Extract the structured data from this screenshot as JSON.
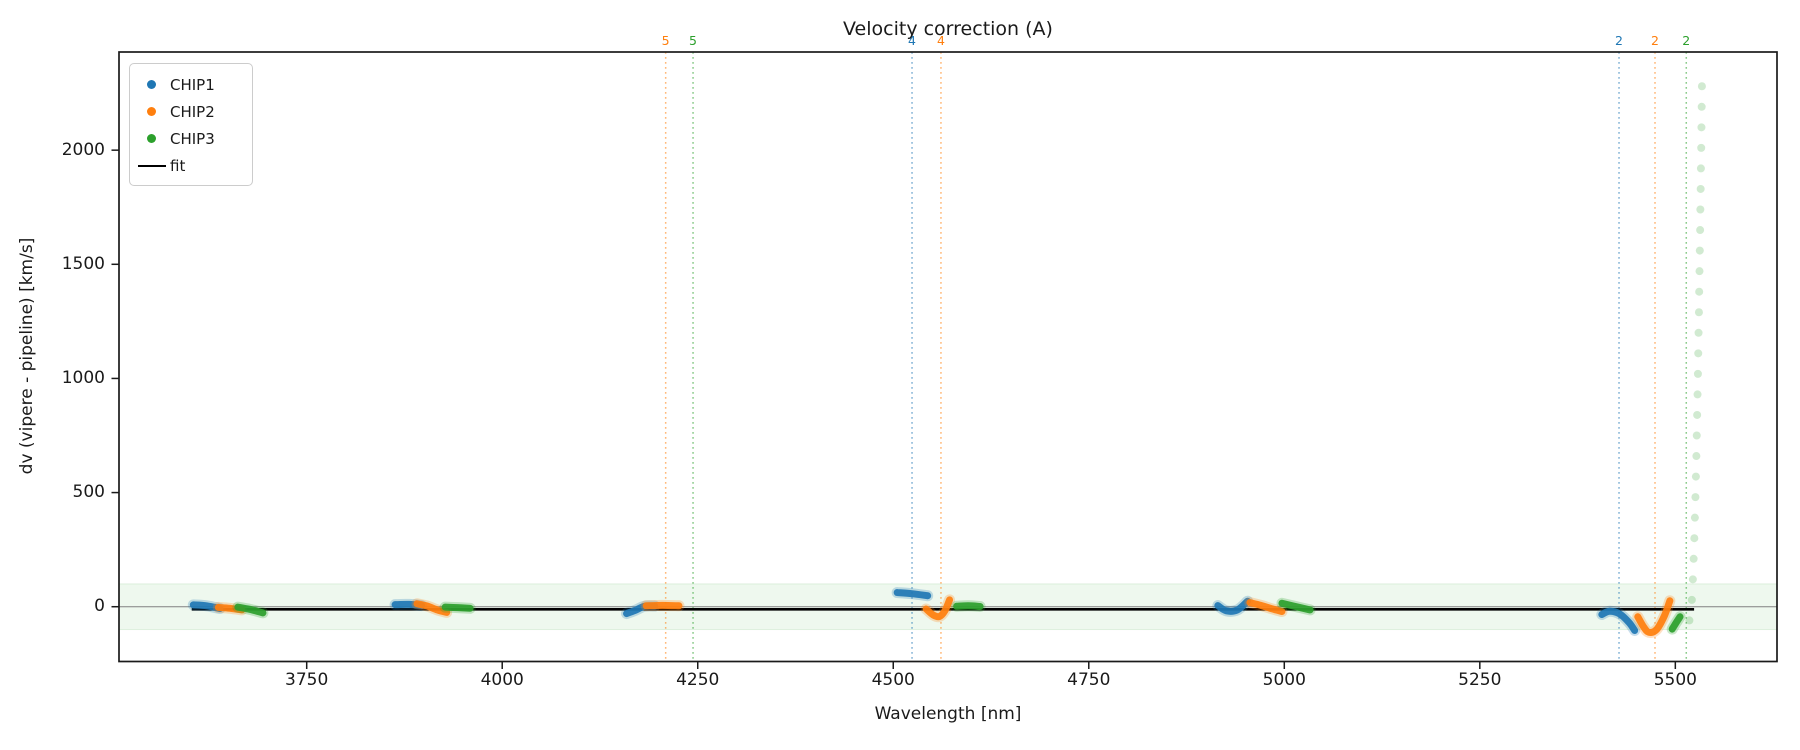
{
  "chart_data": {
    "type": "scatter",
    "title": "Velocity correction (A)",
    "xlabel": "Wavelength [nm]",
    "ylabel": "dv (vipere - pipeline) [km/s]",
    "xlim": [
      3510,
      5630
    ],
    "ylim": [
      -240,
      2430
    ],
    "xticks": [
      3750,
      4000,
      4250,
      4500,
      4750,
      5000,
      5250,
      5500
    ],
    "yticks": [
      0,
      500,
      1000,
      1500,
      2000
    ],
    "grid": false,
    "legend_position": "upper left",
    "background_band": {
      "ymin": -100,
      "ymax": 100,
      "color": "#2ca02c",
      "alpha": 0.08
    },
    "zero_line": {
      "y": 0,
      "color": "#808080",
      "width": 1
    },
    "fit_line": {
      "label": "fit",
      "color": "#000000",
      "x_start": 3603,
      "x_end": 5524,
      "y": -7
    },
    "order_vlines": [
      {
        "x": 4209,
        "label": "5",
        "color": "#ff7f0e"
      },
      {
        "x": 4244,
        "label": "5",
        "color": "#2ca02c"
      },
      {
        "x": 4524,
        "label": "4",
        "color": "#1f77b4"
      },
      {
        "x": 4561,
        "label": "4",
        "color": "#ff7f0e"
      },
      {
        "x": 5428,
        "label": "2",
        "color": "#1f77b4"
      },
      {
        "x": 5474,
        "label": "2",
        "color": "#ff7f0e"
      },
      {
        "x": 5514,
        "label": "2",
        "color": "#2ca02c"
      }
    ],
    "series": [
      {
        "name": "CHIP1",
        "color": "#1f77b4",
        "segments": [
          [
            [
              3605,
              8
            ],
            [
              3622,
              4
            ],
            [
              3639,
              -8
            ]
          ],
          [
            [
              3863,
              9
            ],
            [
              3881,
              10
            ],
            [
              3897,
              5
            ]
          ],
          [
            [
              4159,
              -30
            ],
            [
              4170,
              -16
            ],
            [
              4182,
              2
            ],
            [
              4195,
              3
            ]
          ],
          [
            [
              4505,
              62
            ],
            [
              4524,
              57
            ],
            [
              4544,
              48
            ]
          ],
          [
            [
              4915,
              5
            ],
            [
              4926,
              -18
            ],
            [
              4940,
              -14
            ],
            [
              4953,
              24
            ]
          ],
          [
            [
              5406,
              -34
            ],
            [
              5416,
              -20
            ],
            [
              5429,
              -32
            ],
            [
              5441,
              -70
            ],
            [
              5448,
              -104
            ]
          ]
        ]
      },
      {
        "name": "CHIP2",
        "color": "#ff7f0e",
        "segments": [
          [
            [
              3637,
              -3
            ],
            [
              3652,
              -7
            ],
            [
              3667,
              -14
            ]
          ],
          [
            [
              3891,
              13
            ],
            [
              3904,
              3
            ],
            [
              3917,
              -14
            ],
            [
              3929,
              -25
            ]
          ],
          [
            [
              4184,
              4
            ],
            [
              4205,
              6
            ],
            [
              4226,
              4
            ]
          ],
          [
            [
              4542,
              -10
            ],
            [
              4551,
              -36
            ],
            [
              4559,
              -43
            ],
            [
              4566,
              -18
            ],
            [
              4572,
              30
            ]
          ],
          [
            [
              4956,
              18
            ],
            [
              4970,
              6
            ],
            [
              4984,
              -9
            ],
            [
              4997,
              -21
            ]
          ],
          [
            [
              5452,
              -44
            ],
            [
              5459,
              -86
            ],
            [
              5466,
              -112
            ],
            [
              5476,
              -100
            ],
            [
              5486,
              -40
            ],
            [
              5493,
              26
            ]
          ]
        ]
      },
      {
        "name": "CHIP3",
        "color": "#2ca02c",
        "segments": [
          [
            [
              3662,
              -2
            ],
            [
              3678,
              -12
            ],
            [
              3694,
              -27
            ]
          ],
          [
            [
              3927,
              -2
            ],
            [
              3943,
              -4
            ],
            [
              3959,
              -7
            ]
          ],
          [
            [
              4581,
              2
            ],
            [
              4596,
              4
            ],
            [
              4611,
              1
            ]
          ],
          [
            [
              4997,
              15
            ],
            [
              5013,
              2
            ],
            [
              5033,
              -14
            ]
          ],
          [
            [
              5496,
              -98
            ],
            [
              5501,
              -70
            ],
            [
              5506,
              -44
            ]
          ]
        ],
        "diverging_tail": {
          "alpha": 0.22,
          "points": [
            [
              5518.0,
              -60
            ],
            [
              5521.1,
              30
            ],
            [
              5522.4,
              120
            ],
            [
              5523.4,
              210
            ],
            [
              5524.3,
              300
            ],
            [
              5525.0,
              390
            ],
            [
              5525.7,
              480
            ],
            [
              5526.3,
              570
            ],
            [
              5526.9,
              660
            ],
            [
              5527.4,
              750
            ],
            [
              5527.9,
              840
            ],
            [
              5528.4,
              930
            ],
            [
              5528.9,
              1020
            ],
            [
              5529.3,
              1110
            ],
            [
              5529.7,
              1200
            ],
            [
              5530.2,
              1290
            ],
            [
              5530.5,
              1380
            ],
            [
              5530.9,
              1470
            ],
            [
              5531.3,
              1560
            ],
            [
              5531.7,
              1650
            ],
            [
              5532.0,
              1740
            ],
            [
              5532.4,
              1830
            ],
            [
              5532.7,
              1920
            ],
            [
              5533.1,
              2010
            ],
            [
              5533.4,
              2100
            ],
            [
              5533.7,
              2190
            ],
            [
              5534.0,
              2280
            ]
          ]
        }
      }
    ]
  }
}
